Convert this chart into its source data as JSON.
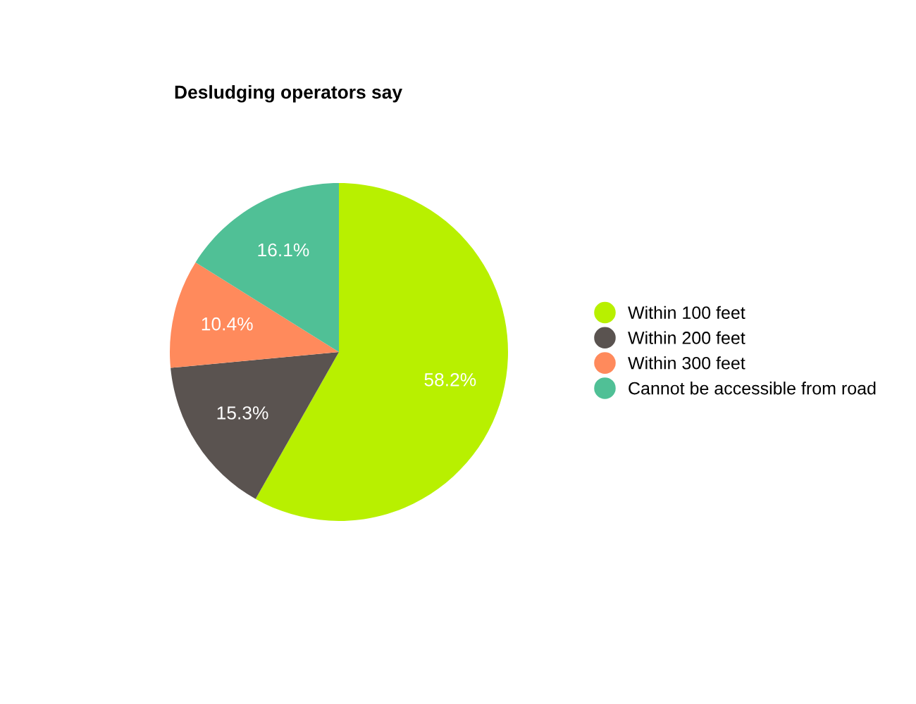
{
  "chart_data": {
    "type": "pie",
    "title": "Desludging operators say",
    "categories": [
      "Within 100 feet",
      "Within 200 feet",
      "Within 300 feet",
      "Cannot be accessible from road"
    ],
    "values": [
      58.2,
      15.3,
      10.4,
      16.1
    ],
    "colors": [
      "#b8f000",
      "#5a5350",
      "#ff8a5c",
      "#50c096"
    ],
    "value_labels": [
      "58.2%",
      "15.3%",
      "10.4%",
      "16.1%"
    ],
    "legend": "right"
  }
}
